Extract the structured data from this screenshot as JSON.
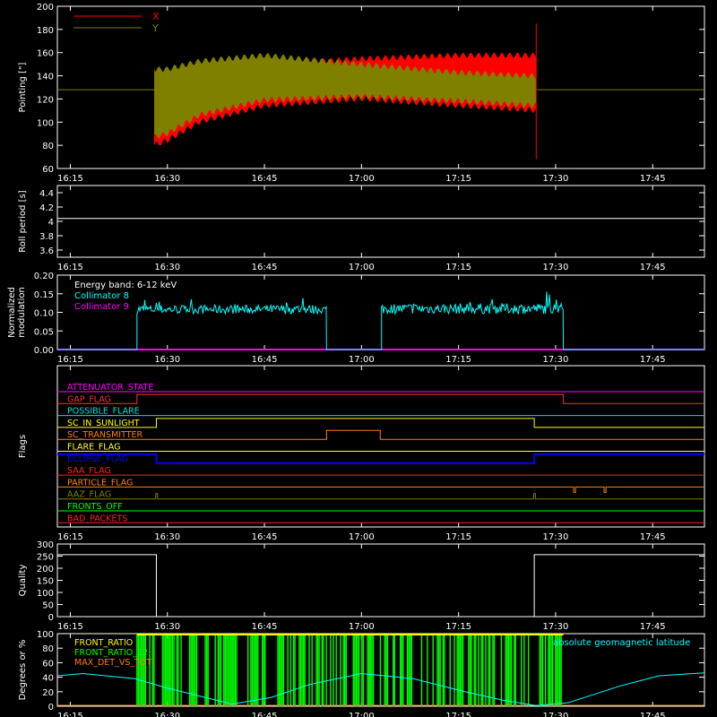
{
  "time_axis": {
    "ticks": [
      "16:15",
      "16:30",
      "16:45",
      "17:00",
      "17:15",
      "17:30",
      "17:45"
    ],
    "tick_minutes": [
      975,
      990,
      1005,
      1020,
      1035,
      1050,
      1065
    ],
    "range_minutes": [
      973,
      1073
    ]
  },
  "colors": {
    "background": "#000000",
    "axes": "#ffffff",
    "x_series": "#ff0000",
    "y_series": "#808000",
    "roll": "#ffffff",
    "collimator8": "#00ffff",
    "collimator9": "#ff00ff",
    "quality": "#ffffff",
    "front_ratio": "#00ff00",
    "front_ratio2": "#ffff00",
    "max_det": "#ff8000",
    "latitude": "#00ffff"
  },
  "chart_data": [
    {
      "id": "pointing",
      "type": "area",
      "ylabel": "Pointing [\"]",
      "ylim": [
        60,
        200
      ],
      "yticks": [
        60,
        80,
        100,
        120,
        140,
        160,
        180,
        200
      ],
      "legend": {
        "placement": "top-left",
        "entries": [
          {
            "label": "X",
            "color": "#ff0000"
          },
          {
            "label": "Y",
            "color": "#808000"
          }
        ]
      },
      "series": [
        {
          "name": "X",
          "color": "#ff0000",
          "x_minutes": [
            988,
            990,
            995,
            1005,
            1020,
            1035,
            1047
          ],
          "min": [
            78,
            82,
            98,
            112,
            118,
            112,
            108
          ],
          "max": [
            148,
            138,
            145,
            152,
            157,
            160,
            160
          ]
        },
        {
          "name": "Y",
          "color": "#808000",
          "x_minutes": [
            988,
            990,
            995,
            1005,
            1020,
            1035,
            1047
          ],
          "min": [
            85,
            88,
            104,
            117,
            120,
            116,
            112
          ],
          "max": [
            148,
            148,
            155,
            160,
            152,
            145,
            142
          ]
        }
      ],
      "baseline": 128,
      "end_spike": {
        "x_minutes": 1047,
        "min": 68,
        "max": 185
      }
    },
    {
      "id": "roll",
      "type": "line",
      "ylabel": "Roll period [s]",
      "ylim": [
        3.5,
        4.5
      ],
      "yticks": [
        3.6,
        3.8,
        4.0,
        4.2,
        4.4
      ],
      "series": [
        {
          "name": "Roll period",
          "x_minutes": [
            973,
            1073
          ],
          "values": [
            4.04,
            4.04
          ]
        }
      ]
    },
    {
      "id": "modulation",
      "type": "line",
      "ylabel": "Normalized modulation",
      "ylim": [
        0,
        0.2
      ],
      "yticks": [
        "0.00",
        "0.05",
        "0.10",
        "0.15",
        "0.20"
      ],
      "annotation": "Energy band: 6-12 keV",
      "legend": {
        "placement": "top-left",
        "entries": [
          {
            "label": "Collimator 8",
            "color": "#00ffff"
          },
          {
            "label": "Collimator 9",
            "color": "#ff00ff"
          }
        ]
      },
      "series": [
        {
          "name": "Collimator 8",
          "segments": [
            {
              "start": 985.3,
              "end": 1014.6,
              "mean": 0.108,
              "noise": 0.012
            },
            {
              "start": 1023.1,
              "end": 1051.2,
              "mean": 0.11,
              "noise": 0.014
            }
          ]
        },
        {
          "name": "Collimator 9",
          "values": [
            0,
            0
          ]
        }
      ]
    },
    {
      "id": "flags",
      "type": "line",
      "ylabel": "Flags",
      "flags": [
        {
          "label": "ATTENUATOR_STATE",
          "color": "#ff00ff",
          "changes": []
        },
        {
          "label": "GAP_FLAG",
          "color": "#ff3030",
          "changes": [
            [
              985.3,
              1
            ],
            [
              1051.2,
              0
            ]
          ]
        },
        {
          "label": "POSSIBLE_FLARE",
          "color": "#00e0e0",
          "changes": []
        },
        {
          "label": "SC_IN_SUNLIGHT",
          "color": "#ffff00",
          "changes": [
            [
              988.3,
              1
            ],
            [
              1046.7,
              0
            ]
          ]
        },
        {
          "label": "SC_TRANSMITTER",
          "color": "#ff8000",
          "changes": [
            [
              1014.6,
              1
            ],
            [
              1022.9,
              0
            ]
          ]
        },
        {
          "label": "FLARE_FLAG",
          "color": "#ffff40",
          "changes": []
        },
        {
          "label": "ECLIPSE_FLAG",
          "color": "#0000ff",
          "changes": [
            [
              988.3,
              0
            ],
            [
              1046.7,
              1
            ]
          ]
        },
        {
          "label": "SAA_FLAG",
          "color": "#ff2020",
          "changes": []
        },
        {
          "label": "PARTICLE_FLAG",
          "color": "#ff8000",
          "pulses": [
            1052.8,
            1057.5
          ]
        },
        {
          "label": "AAZ_FLAG",
          "color": "#808000",
          "pulses": [
            988.2,
            1046.6
          ]
        },
        {
          "label": "FRONTS_OFF",
          "color": "#00ff00",
          "changes": []
        },
        {
          "label": "BAD_PACKETS",
          "color": "#ff2020",
          "changes": []
        }
      ]
    },
    {
      "id": "quality",
      "type": "line",
      "ylabel": "Quality",
      "ylim": [
        0,
        300
      ],
      "yticks": [
        0,
        50,
        100,
        150,
        200,
        250,
        300
      ],
      "series": [
        {
          "name": "Quality",
          "x_minutes": [
            973,
            988.3,
            988.3,
            1046.7,
            1046.7,
            1073
          ],
          "values": [
            256,
            256,
            0,
            0,
            256,
            256
          ]
        }
      ]
    },
    {
      "id": "ratios",
      "type": "line",
      "ylabel": "Degrees or %",
      "ylim": [
        0,
        100
      ],
      "yticks": [
        0,
        20,
        40,
        60,
        80,
        100
      ],
      "legend": {
        "placement": "top-left",
        "entries": [
          {
            "label": "FRONT_RATIO",
            "color": "#ffff00"
          },
          {
            "label": "FRONT_RATIO_12",
            "color": "#00ff00"
          },
          {
            "label": "MAX_DET_VS_TOT",
            "color": "#ff8000"
          }
        ]
      },
      "annotation": "absolute geomagnetic latitude",
      "latitude": {
        "x_minutes": [
          973,
          977,
          985,
          990,
          1000,
          1006,
          1012,
          1020,
          1028,
          1036,
          1042,
          1047,
          1052,
          1060,
          1066,
          1073
        ],
        "values": [
          42,
          45,
          38,
          25,
          3,
          12,
          30,
          45,
          38,
          20,
          8,
          1,
          5,
          28,
          42,
          46
        ]
      },
      "front_ratio_band": {
        "start": 985.3,
        "end": 1051.2,
        "level": 100
      }
    }
  ]
}
